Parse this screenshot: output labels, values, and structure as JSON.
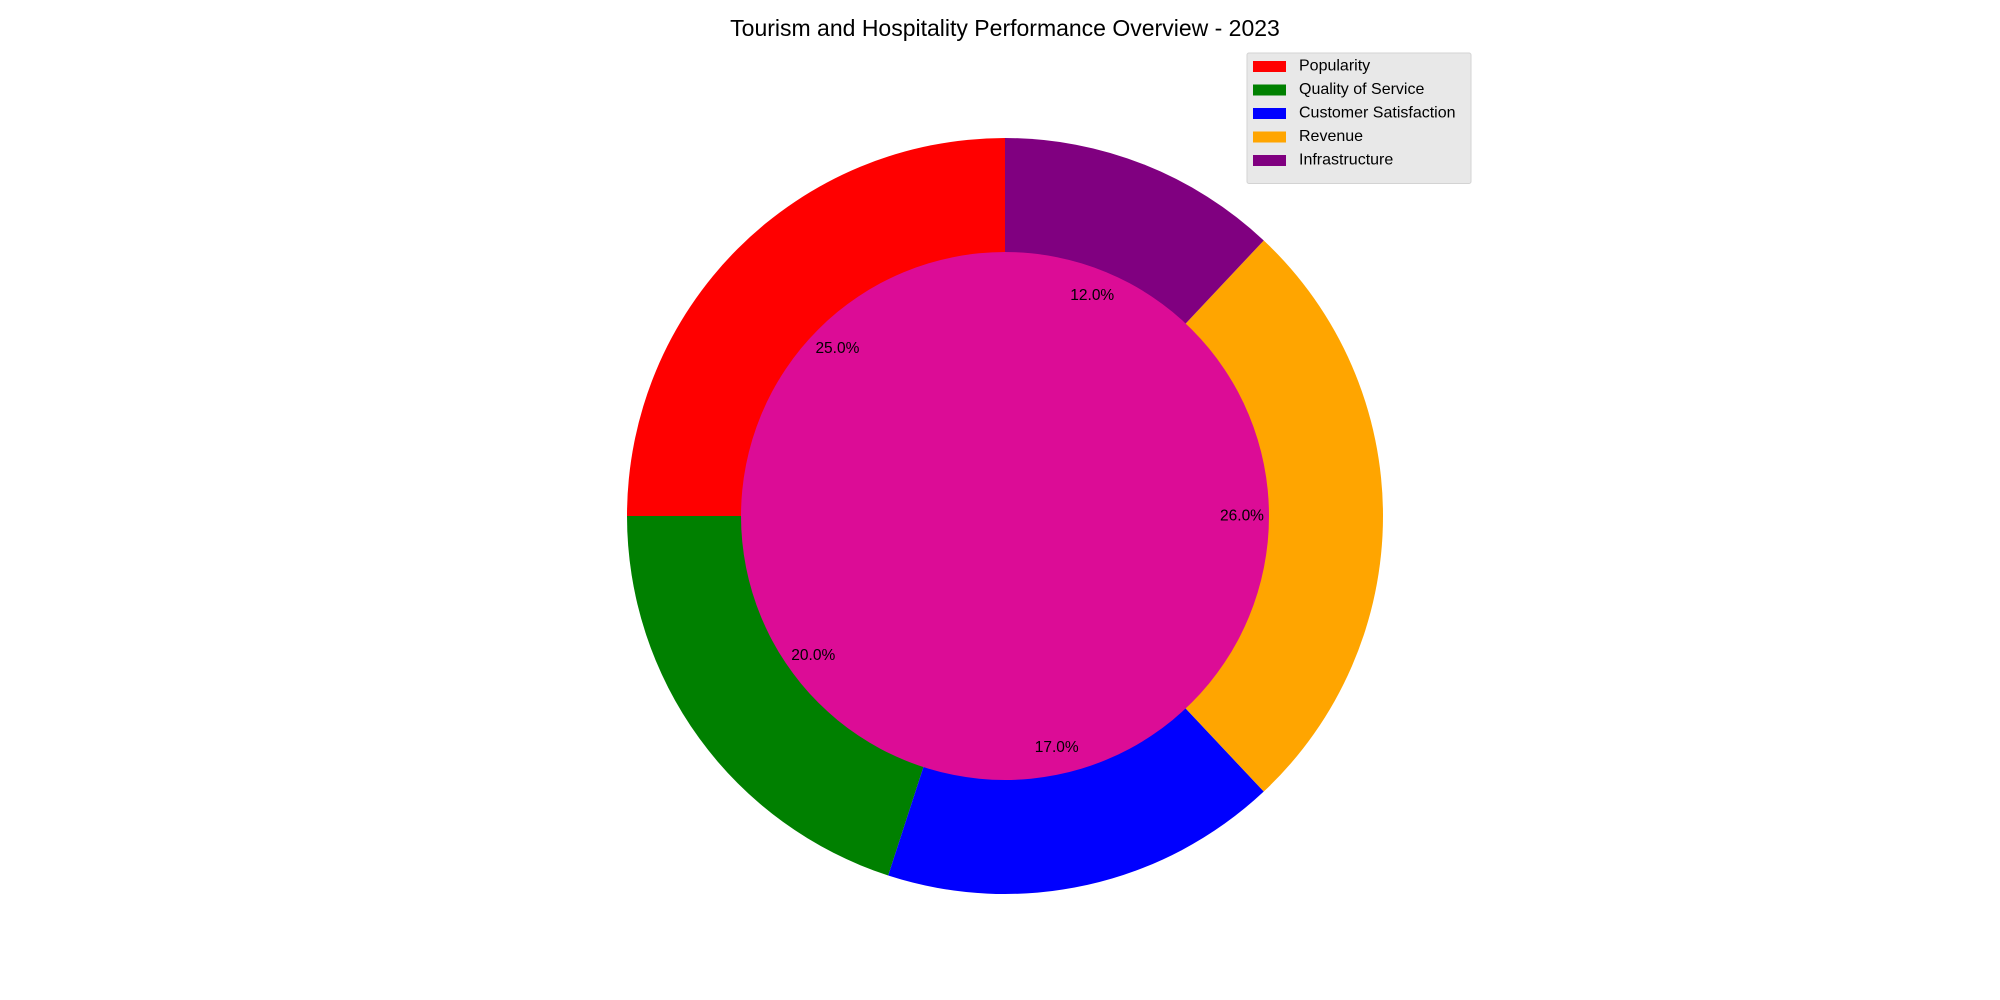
{
  "chart_data": {
    "type": "pie",
    "variant": "donut",
    "title": "Tourism and Hospitality Performance Overview - 2023",
    "categories": [
      "Popularity",
      "Quality of Service",
      "Customer Satisfaction",
      "Revenue",
      "Infrastructure"
    ],
    "values": [
      25,
      20,
      17,
      26,
      12
    ],
    "value_labels": [
      "25.0%",
      "20.0%",
      "17.0%",
      "26.0%",
      "12.0%"
    ],
    "colors": [
      "#ff0000",
      "#008000",
      "#0000ff",
      "#ffa500",
      "#800080"
    ],
    "center_color": "#dc0c96",
    "start_angle_deg": 90,
    "direction": "counterclockwise",
    "legend": {
      "placement": "top-right",
      "background": "#e8e8e8"
    }
  }
}
